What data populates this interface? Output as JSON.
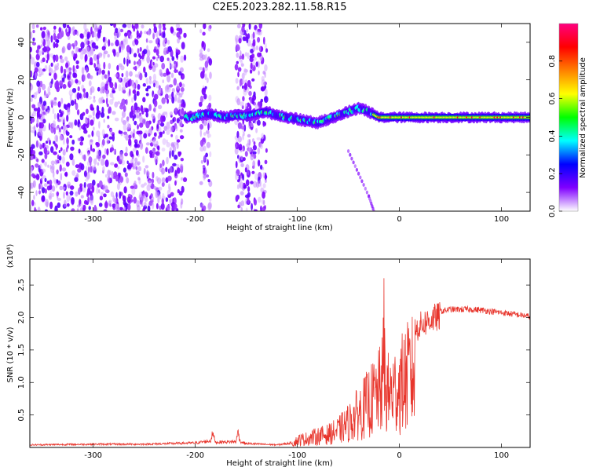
{
  "title": "C2E5.2023.282.11.58.R15",
  "chart_data": [
    {
      "type": "heatmap",
      "title": "C2E5.2023.282.11.58.R15",
      "xlabel": "Height of straight line (km)",
      "ylabel": "Frequency (Hz)",
      "xlim": [
        -362,
        128
      ],
      "ylim": [
        -50,
        50
      ],
      "x_ticks": [
        {
          "value": -300,
          "label": "-300"
        },
        {
          "value": -200,
          "label": "-200"
        },
        {
          "value": -100,
          "label": "-100"
        },
        {
          "value": 0,
          "label": "0"
        },
        {
          "value": 100,
          "label": "100"
        }
      ],
      "y_ticks": [
        {
          "value": -40,
          "label": "-40"
        },
        {
          "value": -20,
          "label": "-20"
        },
        {
          "value": 0,
          "label": "0"
        },
        {
          "value": 20,
          "label": "20"
        },
        {
          "value": 40,
          "label": "40"
        }
      ],
      "colorbar": {
        "label": "Normalized spectral amplitude",
        "range": [
          0.0,
          1.0
        ],
        "ticks": [
          {
            "value": 0.0,
            "label": "0.0"
          },
          {
            "value": 0.2,
            "label": "0.2"
          },
          {
            "value": 0.4,
            "label": "0.4"
          },
          {
            "value": 0.6,
            "label": "0.6"
          },
          {
            "value": 0.8,
            "label": "0.8"
          }
        ],
        "colors": [
          "#ffffff",
          "#8000ff",
          "#0000ff",
          "#00ffff",
          "#00ff00",
          "#ffff00",
          "#ff8000",
          "#ff0000",
          "#ff0080"
        ]
      },
      "noise_regions": [
        [
          -362,
          -210
        ],
        [
          -195,
          -185
        ],
        [
          -160,
          -130
        ]
      ],
      "ridge": {
        "x": [
          -210,
          -200,
          -190,
          -180,
          -170,
          -160,
          -150,
          -140,
          -130,
          -120,
          -110,
          -100,
          -90,
          -80,
          -70,
          -60,
          -50,
          -40,
          -30,
          -20,
          -10,
          0,
          20,
          50,
          80,
          128
        ],
        "y": [
          0,
          0,
          2,
          1,
          0,
          1,
          1,
          2,
          3,
          1,
          0,
          -1,
          -2,
          -3,
          -1,
          1,
          3,
          5,
          3,
          0,
          0,
          0,
          0,
          0,
          0,
          0
        ],
        "peak_start_x": -25
      },
      "echo_trace": {
        "x": [
          -50,
          -40,
          -30,
          -25
        ],
        "y": [
          -18,
          -30,
          -42,
          -50
        ]
      }
    },
    {
      "type": "line",
      "xlabel": "Height of straight line (km)",
      "ylabel": "SNR (10 * v/v)",
      "multiplier_label": "(x10⁴)",
      "xlim": [
        -362,
        128
      ],
      "ylim": [
        0,
        29000
      ],
      "x_ticks": [
        {
          "value": -300,
          "label": "-300"
        },
        {
          "value": -200,
          "label": "-200"
        },
        {
          "value": -100,
          "label": "-100"
        },
        {
          "value": 0,
          "label": "0"
        },
        {
          "value": 100,
          "label": "100"
        }
      ],
      "y_ticks": [
        {
          "value": 5000,
          "label": "0.5"
        },
        {
          "value": 10000,
          "label": "1.0"
        },
        {
          "value": 15000,
          "label": "1.5"
        },
        {
          "value": 20000,
          "label": "2.0"
        },
        {
          "value": 25000,
          "label": "2.5"
        }
      ],
      "color": "#e8352c",
      "series": [
        {
          "x": [
            -362,
            -300,
            -250,
            -200,
            -185,
            -183,
            -180,
            -160,
            -158,
            -156,
            -150,
            -120,
            -105,
            -100,
            -90,
            -80,
            -70,
            -60,
            -50,
            -40,
            -30,
            -20,
            -16,
            -15,
            -14,
            -10,
            -5,
            0,
            10,
            20,
            30,
            40,
            50,
            60,
            70,
            80,
            90,
            100,
            110,
            120,
            128
          ],
          "y": [
            400,
            500,
            500,
            700,
            1000,
            2200,
            800,
            900,
            2500,
            900,
            600,
            400,
            700,
            1800,
            2200,
            2800,
            3200,
            4200,
            6000,
            8500,
            11000,
            13500,
            16500,
            29000,
            14000,
            13000,
            14000,
            15000,
            18000,
            19500,
            20500,
            21000,
            21300,
            21300,
            21300,
            21200,
            21000,
            20800,
            20600,
            20400,
            20200
          ]
        }
      ]
    }
  ]
}
